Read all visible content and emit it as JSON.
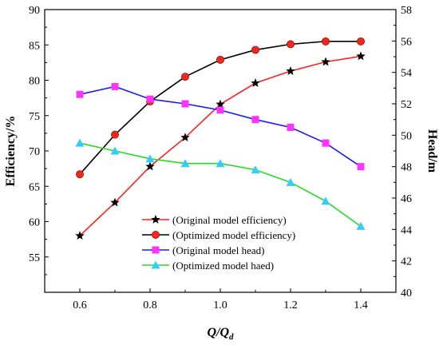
{
  "chart_data": {
    "type": "line",
    "x": [
      0.6,
      0.7,
      0.8,
      0.9,
      1.0,
      1.1,
      1.2,
      1.3,
      1.4
    ],
    "xlim": [
      0.5,
      1.5
    ],
    "xticks": [
      "0.6",
      "0.8",
      "1.0",
      "1.2",
      "1.4"
    ],
    "xlabel": {
      "main": "Q/Q",
      "sub": "d"
    },
    "ylabel_left": "Efficiency/%",
    "ylim_left": [
      50,
      90
    ],
    "yticks_left": [
      "55",
      "60",
      "65",
      "70",
      "75",
      "80",
      "85",
      "90"
    ],
    "ylabel_right": "Head/m",
    "ylim_right": [
      40,
      58
    ],
    "yticks_right": [
      "40",
      "42",
      "44",
      "46",
      "48",
      "50",
      "52",
      "54",
      "56",
      "58"
    ],
    "grid": false,
    "legend_position": "lower-center",
    "series": [
      {
        "name": "(Original model efficiency)",
        "axis": "left",
        "values": [
          58.0,
          62.7,
          67.8,
          71.9,
          76.6,
          79.6,
          81.3,
          82.6,
          83.4
        ],
        "line_color": "#ff2020",
        "marker": "star",
        "marker_color": "#000000"
      },
      {
        "name": "(Optimized model efficiency)",
        "axis": "left",
        "values": [
          66.7,
          72.3,
          77.0,
          80.5,
          82.9,
          84.3,
          85.1,
          85.5,
          85.5
        ],
        "line_color": "#000000",
        "marker": "circle",
        "marker_color": "#ff2020"
      },
      {
        "name": "(Original model head)",
        "axis": "right",
        "values": [
          52.6,
          53.1,
          52.3,
          52.0,
          51.6,
          51.0,
          50.5,
          49.5,
          48.0
        ],
        "line_color": "#1a1aff",
        "marker": "square",
        "marker_color": "#ff33ff"
      },
      {
        "name": "(Optimized model haed)",
        "axis": "right",
        "values": [
          49.5,
          49.0,
          48.5,
          48.2,
          48.2,
          47.8,
          47.0,
          45.8,
          44.2
        ],
        "line_color": "#22dd22",
        "marker": "triangle",
        "marker_color": "#33ccff"
      }
    ]
  }
}
